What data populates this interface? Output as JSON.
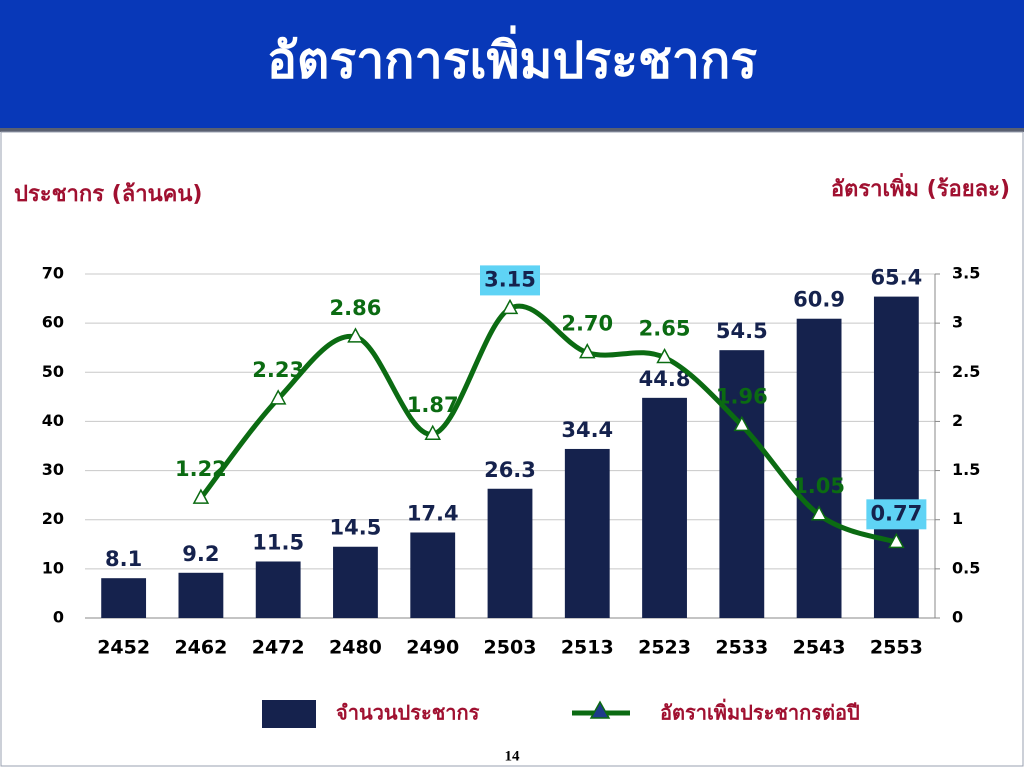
{
  "chart_data": {
    "type": "bar_line",
    "title": "อัตราการเพิ่มประชากร",
    "y_label": "ประชากร (ล้านคน)",
    "y2_label": "อัตราเพิ่ม (ร้อยละ)",
    "categories": [
      "2452",
      "2462",
      "2472",
      "2480",
      "2490",
      "2503",
      "2513",
      "2523",
      "2533",
      "2543",
      "2553"
    ],
    "series": [
      {
        "name": "จำนวนประชากร",
        "type": "bar",
        "color": "#15224d",
        "values": [
          8.1,
          9.2,
          11.5,
          14.5,
          17.4,
          26.3,
          34.4,
          44.8,
          54.5,
          60.9,
          65.4
        ]
      },
      {
        "name": "อัตราเพิ่มประชากรต่อปี",
        "type": "line",
        "axis": "y2",
        "color": "#0b6b12",
        "values": [
          null,
          1.22,
          2.23,
          2.86,
          1.87,
          3.15,
          2.7,
          2.65,
          1.96,
          1.05,
          0.77
        ],
        "value_labels": [
          null,
          "1.22",
          "2.23",
          "2.86",
          "1.87",
          "3.15",
          "2.70",
          "2.65",
          "1.96",
          "1.05",
          "0.77"
        ]
      }
    ],
    "ylim": [
      0,
      70
    ],
    "yticks": [
      0,
      10,
      20,
      30,
      40,
      50,
      60,
      70
    ],
    "y2lim": [
      0,
      3.5
    ],
    "y2ticks": [
      0,
      0.5,
      1,
      1.5,
      2,
      2.5,
      3,
      3.5
    ],
    "grid": true,
    "page_number": "14"
  }
}
